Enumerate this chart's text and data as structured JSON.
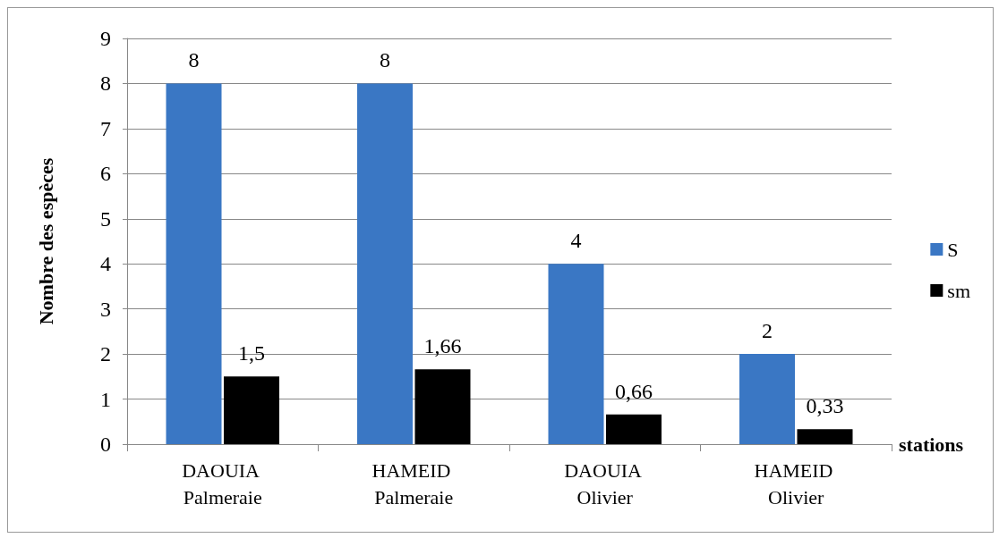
{
  "chart_data": {
    "type": "bar",
    "ylabel": "Nombre des espèces",
    "xlabel": "stations",
    "categories": [
      "DAOUIA Palmeraie",
      "HAMEID Palmeraie",
      "DAOUIA Olivier",
      "HAMEID Olivier"
    ],
    "series": [
      {
        "name": "S",
        "color": "#3a77c4",
        "values": [
          8,
          8,
          4,
          2
        ],
        "value_labels": [
          "8",
          "8",
          "4",
          "2"
        ]
      },
      {
        "name": "sm",
        "color": "#000000",
        "values": [
          1.5,
          1.66,
          0.66,
          0.33
        ],
        "value_labels": [
          "1,5",
          "1,66",
          "0,66",
          "0,33"
        ]
      }
    ],
    "ylim": [
      0,
      9
    ],
    "yticks": [
      0,
      1,
      2,
      3,
      4,
      5,
      6,
      7,
      8,
      9
    ],
    "grid": "y",
    "legend": "right"
  }
}
